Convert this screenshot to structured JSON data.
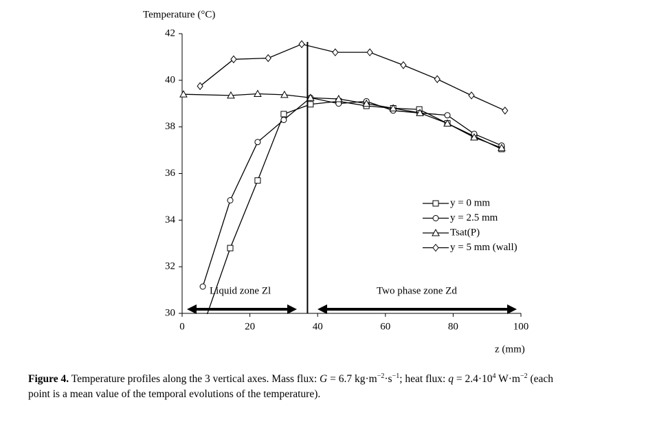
{
  "chart_data": {
    "type": "line",
    "y_label": "Temperature (°C)",
    "x_label": "z (mm)",
    "xlim": [
      0,
      100
    ],
    "xticks": [
      0,
      20,
      40,
      60,
      80,
      100
    ],
    "ylim": [
      30,
      42
    ],
    "yticks": [
      30,
      32,
      34,
      36,
      38,
      40,
      42
    ],
    "color": "#000000",
    "legend": "right",
    "series": [
      {
        "name": "y = 0 mm",
        "marker": "square",
        "x": [
          7,
          14.2,
          22.3,
          30,
          37.9,
          46.2,
          54.4,
          62.3,
          70,
          78.3,
          86.2,
          94.3
        ],
        "values": [
          29.8,
          32.8,
          35.7,
          38.55,
          38.97,
          39.1,
          38.9,
          38.8,
          38.75,
          38.15,
          37.6,
          37.05
        ]
      },
      {
        "name": "y = 2.5 mm",
        "marker": "circle",
        "x": [
          6.1,
          14.2,
          22.3,
          30,
          37.9,
          46.2,
          54.4,
          62.3,
          70,
          78.3,
          86.2,
          94.3
        ],
        "values": [
          31.15,
          34.85,
          37.35,
          38.3,
          39.25,
          39.0,
          39.1,
          38.7,
          38.6,
          38.5,
          37.7,
          37.2
        ]
      },
      {
        "name": "Tsat(P)",
        "marker": "triangle",
        "x": [
          0.4,
          14.4,
          22.3,
          30.2,
          37.9,
          46.2,
          54.4,
          62.3,
          70.2,
          78.3,
          86.2,
          94.3
        ],
        "values": [
          39.4,
          39.35,
          39.42,
          39.38,
          39.25,
          39.2,
          39.0,
          38.8,
          38.6,
          38.15,
          37.55,
          37.1
        ]
      },
      {
        "name": "y = 5 mm (wall)",
        "marker": "diamond",
        "x": [
          5.3,
          15.2,
          25.4,
          35.3,
          45.2,
          55.4,
          65.3,
          75.3,
          85.4,
          95.3
        ],
        "values": [
          39.75,
          40.9,
          40.95,
          41.55,
          41.2,
          41.2,
          40.65,
          40.05,
          39.35,
          38.7
        ]
      }
    ],
    "zone_boundary": 37,
    "annotations": [
      "Liquid zone Zl",
      "Two phase zone Zd"
    ]
  },
  "caption": {
    "label": "Figure 4.",
    "parts": [
      " Temperature profiles along the 3 vertical axes. Mass flux: ",
      "G",
      " = 6.7 kg·m",
      "−2",
      "·s",
      "−1",
      "; heat flux: ",
      "q",
      " = 2.4·10",
      "4",
      " W·m",
      "−2",
      " (each",
      "point is a mean value of the temporal evolutions of the temperature)."
    ]
  }
}
